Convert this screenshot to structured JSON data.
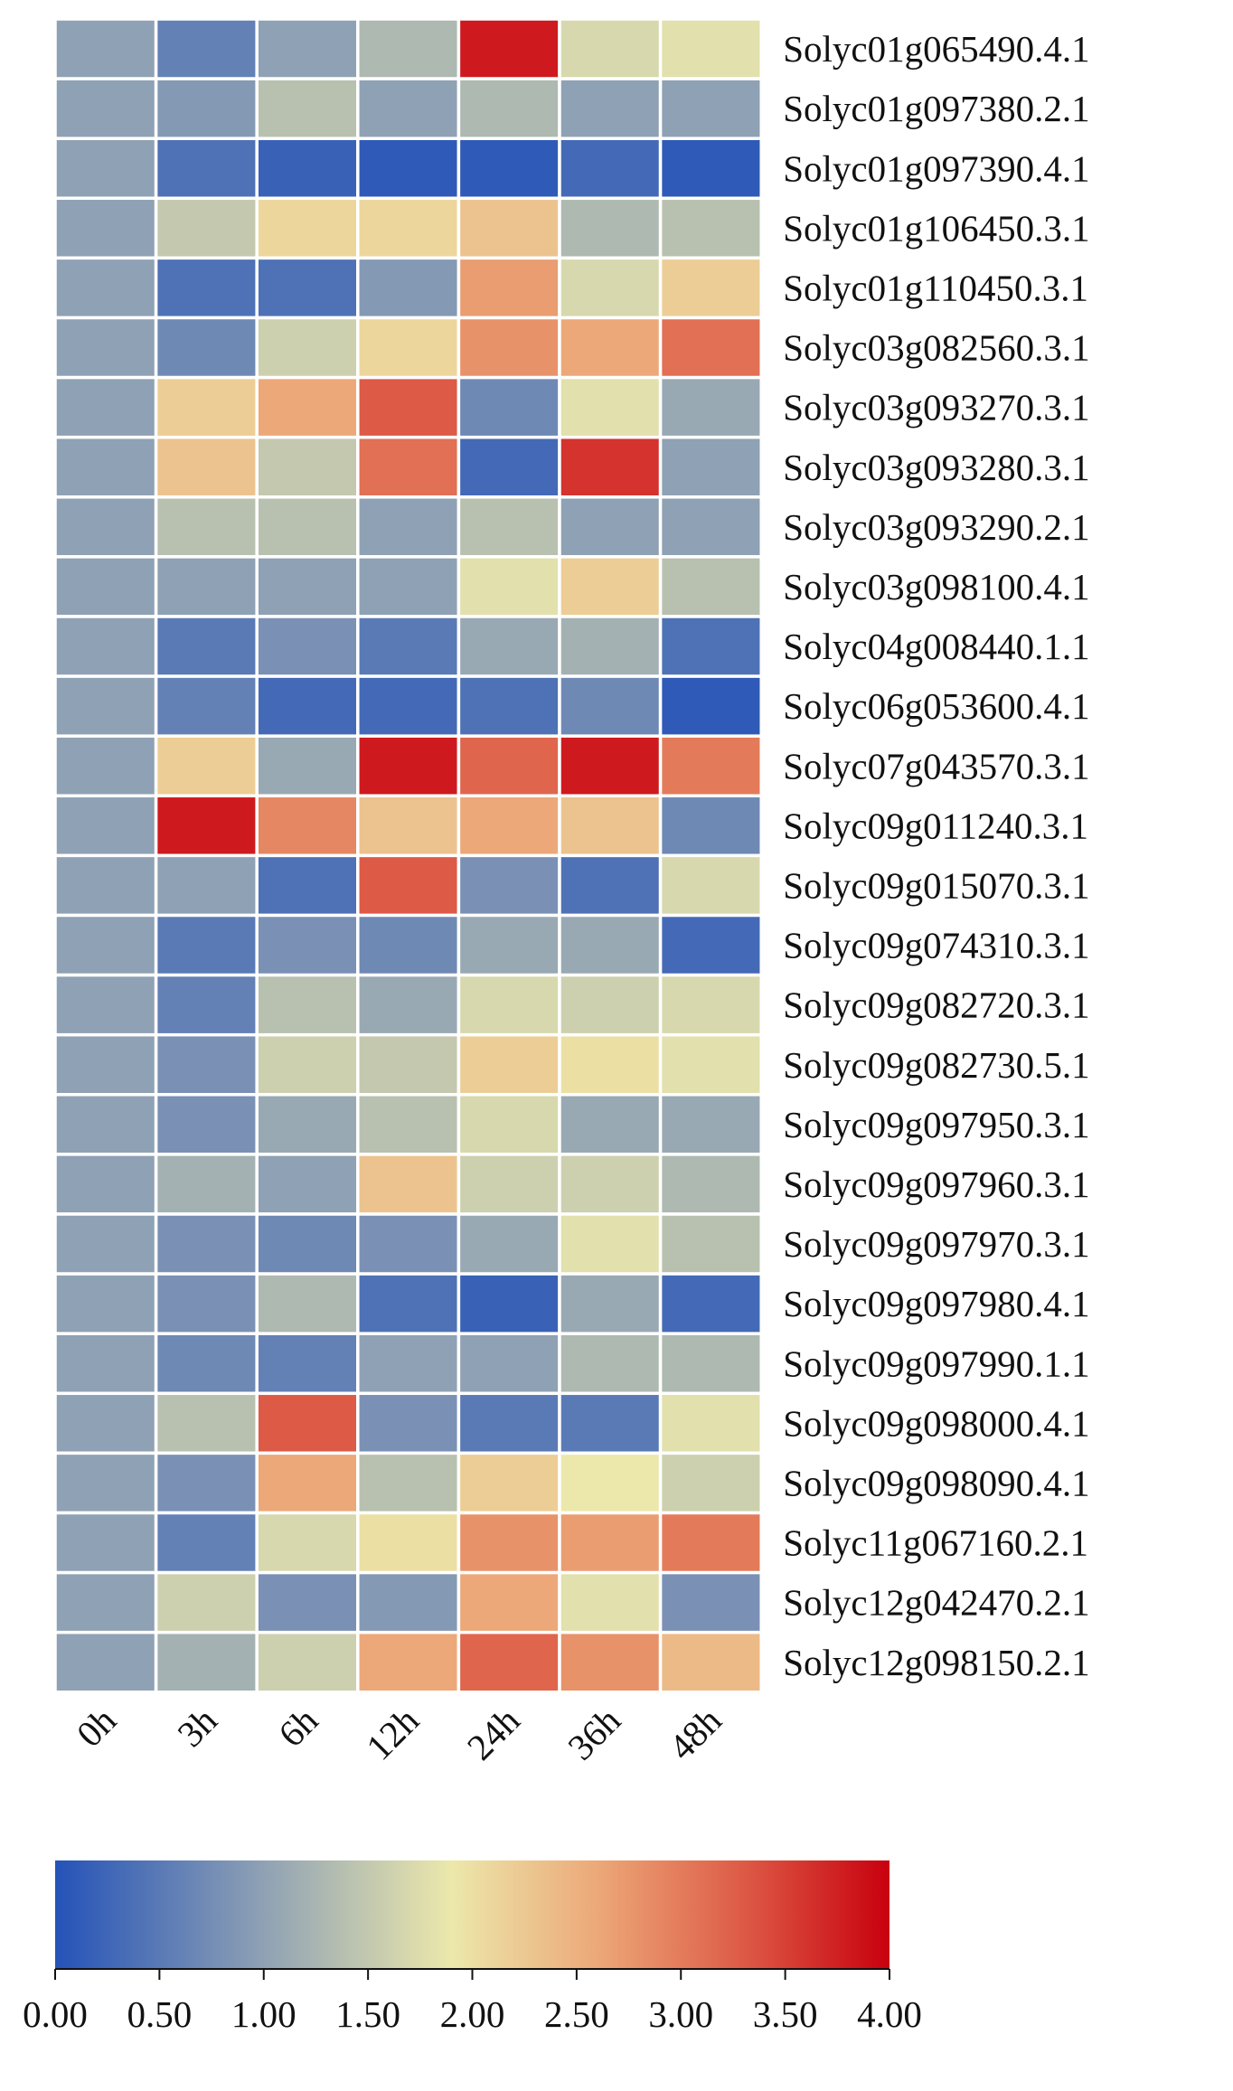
{
  "chart_data": {
    "type": "heatmap",
    "x_categories": [
      "0h",
      "3h",
      "6h",
      "12h",
      "24h",
      "36h",
      "48h"
    ],
    "y_categories": [
      "Solyc01g065490.4.1",
      "Solyc01g097380.2.1",
      "Solyc01g097390.4.1",
      "Solyc01g106450.3.1",
      "Solyc01g110450.3.1",
      "Solyc03g082560.3.1",
      "Solyc03g093270.3.1",
      "Solyc03g093280.3.1",
      "Solyc03g093290.2.1",
      "Solyc03g098100.4.1",
      "Solyc04g008440.1.1",
      "Solyc06g053600.4.1",
      "Solyc07g043570.3.1",
      "Solyc09g011240.3.1",
      "Solyc09g015070.3.1",
      "Solyc09g074310.3.1",
      "Solyc09g082720.3.1",
      "Solyc09g082730.5.1",
      "Solyc09g097950.3.1",
      "Solyc09g097960.3.1",
      "Solyc09g097970.3.1",
      "Solyc09g097980.4.1",
      "Solyc09g097990.1.1",
      "Solyc09g098000.4.1",
      "Solyc09g098090.4.1",
      "Solyc11g067160.2.1",
      "Solyc12g042470.2.1",
      "Solyc12g098150.2.1"
    ],
    "values": [
      [
        1.0,
        0.6,
        1.0,
        1.3,
        3.8,
        1.7,
        1.8
      ],
      [
        1.0,
        0.9,
        1.4,
        1.0,
        1.3,
        1.0,
        1.0
      ],
      [
        1.0,
        0.4,
        0.2,
        0.1,
        0.1,
        0.3,
        0.1
      ],
      [
        1.0,
        1.5,
        2.1,
        2.1,
        2.3,
        1.3,
        1.4
      ],
      [
        1.0,
        0.4,
        0.4,
        0.9,
        2.7,
        1.7,
        2.2
      ],
      [
        1.0,
        0.7,
        1.6,
        2.1,
        2.8,
        2.6,
        3.1
      ],
      [
        1.0,
        2.2,
        2.6,
        3.3,
        0.7,
        1.8,
        1.1
      ],
      [
        1.0,
        2.3,
        1.5,
        3.1,
        0.3,
        3.6,
        1.0
      ],
      [
        1.0,
        1.4,
        1.4,
        1.0,
        1.4,
        1.0,
        1.0
      ],
      [
        1.0,
        1.0,
        1.0,
        1.0,
        1.8,
        2.2,
        1.4
      ],
      [
        1.0,
        0.5,
        0.8,
        0.5,
        1.1,
        1.2,
        0.4
      ],
      [
        1.0,
        0.6,
        0.3,
        0.3,
        0.4,
        0.7,
        0.1
      ],
      [
        1.0,
        2.2,
        1.1,
        3.8,
        3.2,
        3.8,
        3.0
      ],
      [
        1.0,
        3.8,
        2.9,
        2.3,
        2.6,
        2.3,
        0.7
      ],
      [
        1.0,
        1.0,
        0.4,
        3.3,
        0.8,
        0.4,
        1.7
      ],
      [
        1.0,
        0.5,
        0.8,
        0.7,
        1.1,
        1.1,
        0.3
      ],
      [
        1.0,
        0.6,
        1.4,
        1.1,
        1.7,
        1.6,
        1.7
      ],
      [
        1.0,
        0.8,
        1.6,
        1.5,
        2.2,
        2.0,
        1.8
      ],
      [
        1.0,
        0.8,
        1.1,
        1.4,
        1.7,
        1.1,
        1.1
      ],
      [
        1.0,
        1.2,
        1.0,
        2.3,
        1.6,
        1.6,
        1.3
      ],
      [
        1.0,
        0.8,
        0.7,
        0.8,
        1.1,
        1.8,
        1.4
      ],
      [
        1.0,
        0.8,
        1.3,
        0.4,
        0.2,
        1.1,
        0.3
      ],
      [
        1.0,
        0.7,
        0.6,
        1.0,
        1.0,
        1.3,
        1.3
      ],
      [
        1.0,
        1.4,
        3.3,
        0.8,
        0.5,
        0.5,
        1.8
      ],
      [
        1.0,
        0.8,
        2.6,
        1.4,
        2.2,
        1.9,
        1.6
      ],
      [
        1.0,
        0.6,
        1.7,
        2.0,
        2.8,
        2.7,
        3.0
      ],
      [
        1.0,
        1.6,
        0.8,
        0.9,
        2.6,
        1.8,
        0.8
      ],
      [
        1.0,
        1.2,
        1.6,
        2.6,
        3.2,
        2.8,
        2.4
      ]
    ],
    "colorbar": {
      "min": 0,
      "max": 4,
      "ticks": [
        "0.00",
        "0.50",
        "1.00",
        "1.50",
        "2.00",
        "2.50",
        "3.00",
        "3.50",
        "4.00"
      ],
      "tick_values": [
        0,
        0.5,
        1,
        1.5,
        2,
        2.5,
        3,
        3.5,
        4
      ],
      "stops": [
        {
          "value": 0.0,
          "color": "#2452b8"
        },
        {
          "value": 1.0,
          "color": "#8fa1b4"
        },
        {
          "value": 1.9,
          "color": "#ece8ab"
        },
        {
          "value": 2.6,
          "color": "#eca878"
        },
        {
          "value": 3.3,
          "color": "#dd5a46"
        },
        {
          "value": 4.0,
          "color": "#c8000e"
        }
      ]
    },
    "grid_line_color": "#ffffff",
    "legend_position": "bottom",
    "row_labels_position": "right",
    "x_label_rotation": "diagonal"
  }
}
